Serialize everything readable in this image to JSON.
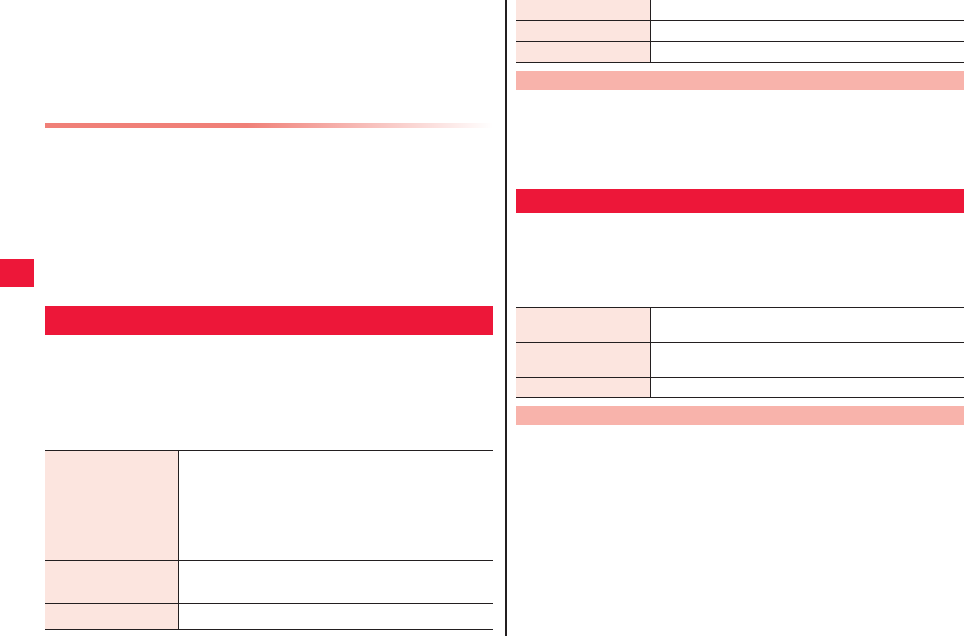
{
  "colors": {
    "accent_red": "#ed1739",
    "section_pink": "#f8b3ab",
    "label_cell_bg": "#fce5df",
    "rule_gradient_start": "#f08078",
    "divider": "#231f20"
  },
  "left_column": {
    "table": {
      "rows": [
        {
          "label": "",
          "value": ""
        },
        {
          "label": "",
          "value": ""
        },
        {
          "label": "",
          "value": ""
        }
      ]
    }
  },
  "right_column": {
    "table_top": {
      "rows": [
        {
          "label": "",
          "value": ""
        },
        {
          "label": "",
          "value": ""
        },
        {
          "label": "",
          "value": ""
        }
      ]
    },
    "table_bottom": {
      "rows": [
        {
          "label": "",
          "value": ""
        },
        {
          "label": "",
          "value": ""
        },
        {
          "label": "",
          "value": ""
        }
      ]
    }
  }
}
